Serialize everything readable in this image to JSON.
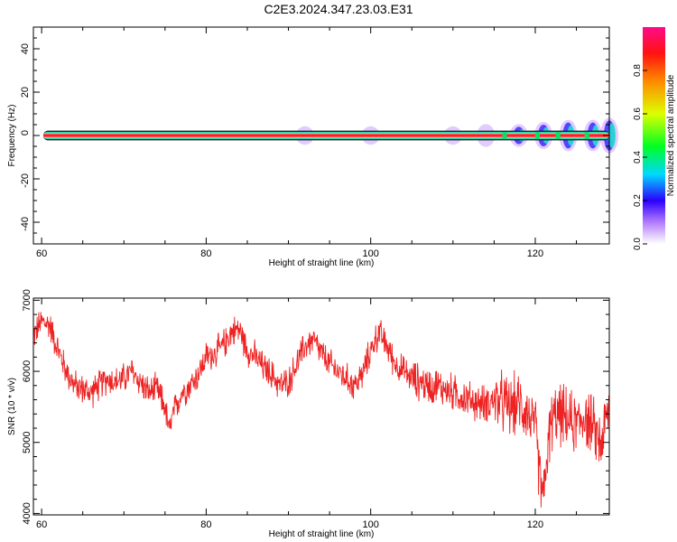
{
  "title": "C2E3.2024.347.23.03.E31",
  "chart_data": [
    {
      "type": "heatmap",
      "xlabel": "Height of straight line (km)",
      "ylabel": "Frequency (Hz)",
      "xlim": [
        59,
        129
      ],
      "ylim": [
        -50,
        50
      ],
      "xticks": [
        60,
        80,
        100,
        120
      ],
      "yticks": [
        -40,
        -20,
        0,
        20,
        40
      ],
      "colorbar": {
        "label": "Normalized spectral amplitude",
        "range": [
          0,
          1
        ],
        "ticks": [
          "0.0",
          "0.2",
          "0.4",
          "0.6",
          "0.8"
        ]
      },
      "band": {
        "center_hz": 0,
        "core_halfwidth_hz": 1,
        "spread_start_km": 92,
        "spread_points": [
          {
            "x": 92,
            "halfwidth_hz": 3
          },
          {
            "x": 100,
            "halfwidth_hz": 3
          },
          {
            "x": 110,
            "halfwidth_hz": 3
          },
          {
            "x": 114,
            "halfwidth_hz": 4
          },
          {
            "x": 118,
            "halfwidth_hz": 4
          },
          {
            "x": 121,
            "halfwidth_hz": 5
          },
          {
            "x": 124,
            "halfwidth_hz": 6
          },
          {
            "x": 127,
            "halfwidth_hz": 6
          },
          {
            "x": 129,
            "halfwidth_hz": 7
          }
        ]
      }
    },
    {
      "type": "line",
      "xlabel": "Height of straight line (km)",
      "ylabel": "SNR (10 * v/v)",
      "xlim": [
        59,
        129
      ],
      "ylim": [
        3980,
        7030
      ],
      "xticks": [
        60,
        80,
        100,
        120
      ],
      "yticks": [
        4000,
        5000,
        6000,
        7000
      ],
      "line_color": "#ee2222",
      "series": [
        {
          "x": [
            59,
            60,
            61,
            62,
            63,
            64,
            65,
            66,
            67,
            68,
            69,
            70,
            71,
            72,
            73,
            74,
            75,
            75.5,
            76,
            77,
            78,
            79,
            80,
            81,
            82,
            83,
            84,
            85,
            86,
            87,
            88,
            89,
            90,
            91,
            92,
            93,
            94,
            95,
            96,
            97,
            98,
            99,
            100,
            101,
            102,
            103,
            104,
            105,
            106,
            107,
            108,
            109,
            110,
            111,
            112,
            113,
            114,
            115,
            116,
            117,
            118,
            119,
            120,
            120.5,
            121,
            121.5,
            122,
            123,
            124,
            125,
            126,
            127,
            128,
            129
          ],
          "y": [
            6500,
            6700,
            6650,
            6300,
            6000,
            5800,
            5750,
            5700,
            5800,
            5900,
            5850,
            5900,
            6000,
            5850,
            5700,
            5750,
            5500,
            5150,
            5400,
            5700,
            5800,
            5950,
            6200,
            6250,
            6350,
            6550,
            6600,
            6300,
            6200,
            6050,
            5950,
            5800,
            5850,
            6100,
            6350,
            6450,
            6250,
            6100,
            6000,
            5900,
            5800,
            5950,
            6300,
            6550,
            6350,
            6100,
            6000,
            5900,
            5850,
            5800,
            5800,
            5750,
            5700,
            5650,
            5600,
            5550,
            5550,
            5600,
            5550,
            5500,
            5550,
            5450,
            5200,
            4600,
            4200,
            4900,
            5300,
            5400,
            5300,
            5250,
            5400,
            5200,
            5000,
            5500
          ]
        }
      ]
    }
  ]
}
